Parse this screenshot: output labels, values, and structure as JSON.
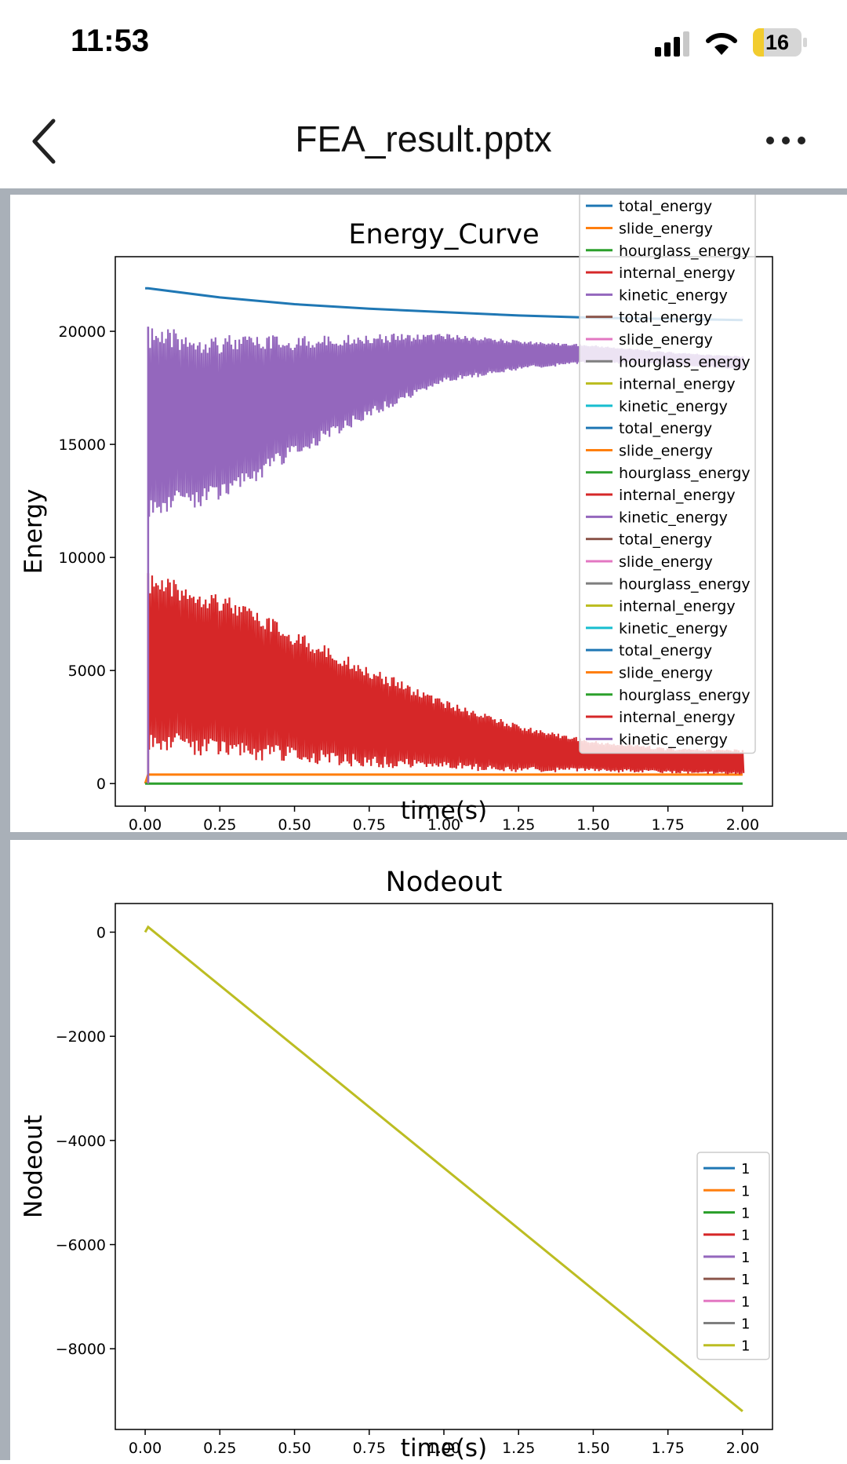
{
  "status": {
    "time": "11:53",
    "battery": "16"
  },
  "header": {
    "title": "FEA_result.pptx"
  },
  "chart_data": [
    {
      "type": "line",
      "title": "Energy_Curve",
      "xlabel": "time(s)",
      "ylabel": "Energy",
      "xlim": [
        -0.1,
        2.1
      ],
      "ylim": [
        -1000,
        23300
      ],
      "xticks": [
        "0.00",
        "0.25",
        "0.50",
        "0.75",
        "1.00",
        "1.25",
        "1.50",
        "1.75",
        "2.00"
      ],
      "yticks": [
        "0",
        "5000",
        "10000",
        "15000",
        "20000"
      ],
      "series": [
        {
          "name": "total_energy",
          "color": "#1f77b4",
          "x": [
            0,
            0.01,
            0.25,
            0.5,
            0.75,
            1.0,
            1.25,
            1.5,
            1.75,
            2.0
          ],
          "y": [
            21900,
            21900,
            21500,
            21200,
            21000,
            20850,
            20700,
            20600,
            20550,
            20500
          ]
        },
        {
          "name": "slide_energy",
          "color": "#ff7f0e",
          "x": [
            0,
            0.01,
            2.0
          ],
          "y": [
            0,
            400,
            400
          ]
        },
        {
          "name": "hourglass_energy",
          "color": "#2ca02c",
          "x": [
            0,
            2.0
          ],
          "y": [
            0,
            0
          ]
        },
        {
          "name": "internal_energy",
          "color": "#d62728",
          "style": "band",
          "x": [
            0.01,
            0.25,
            0.5,
            0.75,
            1.0,
            1.25,
            1.5,
            1.75,
            2.0
          ],
          "y_upper": [
            9300,
            8500,
            6800,
            5200,
            3700,
            2600,
            1900,
            1600,
            1500
          ],
          "y_lower": [
            1500,
            1100,
            900,
            700,
            600,
            500,
            500,
            450,
            400
          ]
        },
        {
          "name": "kinetic_energy",
          "color": "#9467bd",
          "style": "band",
          "x": [
            0.01,
            0.25,
            0.5,
            0.75,
            1.0,
            1.25,
            1.5,
            1.75,
            2.0
          ],
          "y_upper": [
            20200,
            19900,
            19800,
            19900,
            19900,
            19600,
            19400,
            19100,
            18900
          ],
          "y_lower": [
            11800,
            12400,
            14400,
            16200,
            17700,
            18300,
            18600,
            18500,
            18300
          ]
        }
      ],
      "legend": {
        "placement": "top-right",
        "entries": [
          {
            "label": "total_energy",
            "color": "#1f77b4"
          },
          {
            "label": "slide_energy",
            "color": "#ff7f0e"
          },
          {
            "label": "hourglass_energy",
            "color": "#2ca02c"
          },
          {
            "label": "internal_energy",
            "color": "#d62728"
          },
          {
            "label": "kinetic_energy",
            "color": "#9467bd"
          },
          {
            "label": "total_energy",
            "color": "#8c564b"
          },
          {
            "label": "slide_energy",
            "color": "#e377c2"
          },
          {
            "label": "hourglass_energy",
            "color": "#7f7f7f"
          },
          {
            "label": "internal_energy",
            "color": "#bcbd22"
          },
          {
            "label": "kinetic_energy",
            "color": "#17becf"
          },
          {
            "label": "total_energy",
            "color": "#1f77b4"
          },
          {
            "label": "slide_energy",
            "color": "#ff7f0e"
          },
          {
            "label": "hourglass_energy",
            "color": "#2ca02c"
          },
          {
            "label": "internal_energy",
            "color": "#d62728"
          },
          {
            "label": "kinetic_energy",
            "color": "#9467bd"
          },
          {
            "label": "total_energy",
            "color": "#8c564b"
          },
          {
            "label": "slide_energy",
            "color": "#e377c2"
          },
          {
            "label": "hourglass_energy",
            "color": "#7f7f7f"
          },
          {
            "label": "internal_energy",
            "color": "#bcbd22"
          },
          {
            "label": "kinetic_energy",
            "color": "#17becf"
          },
          {
            "label": "total_energy",
            "color": "#1f77b4"
          },
          {
            "label": "slide_energy",
            "color": "#ff7f0e"
          },
          {
            "label": "hourglass_energy",
            "color": "#2ca02c"
          },
          {
            "label": "internal_energy",
            "color": "#d62728"
          },
          {
            "label": "kinetic_energy",
            "color": "#9467bd"
          }
        ]
      }
    },
    {
      "type": "line",
      "title": "Nodeout",
      "xlabel": "time(s)",
      "ylabel": "Nodeout",
      "xlim": [
        -0.1,
        2.1
      ],
      "ylim": [
        -9550,
        550
      ],
      "xticks": [
        "0.00",
        "0.25",
        "0.50",
        "0.75",
        "1.00",
        "1.25",
        "1.50",
        "1.75",
        "2.00"
      ],
      "yticks": [
        "0",
        "−2000",
        "−4000",
        "−6000",
        "−8000"
      ],
      "series": [
        {
          "name": "1",
          "color": "#bcbd22",
          "x": [
            0,
            0.01,
            2.0
          ],
          "y": [
            0,
            100,
            -9200
          ]
        }
      ],
      "legend": {
        "placement": "lower-right",
        "entries": [
          {
            "label": "1",
            "color": "#1f77b4"
          },
          {
            "label": "1",
            "color": "#ff7f0e"
          },
          {
            "label": "1",
            "color": "#2ca02c"
          },
          {
            "label": "1",
            "color": "#d62728"
          },
          {
            "label": "1",
            "color": "#9467bd"
          },
          {
            "label": "1",
            "color": "#8c564b"
          },
          {
            "label": "1",
            "color": "#e377c2"
          },
          {
            "label": "1",
            "color": "#7f7f7f"
          },
          {
            "label": "1",
            "color": "#bcbd22"
          }
        ]
      }
    }
  ]
}
